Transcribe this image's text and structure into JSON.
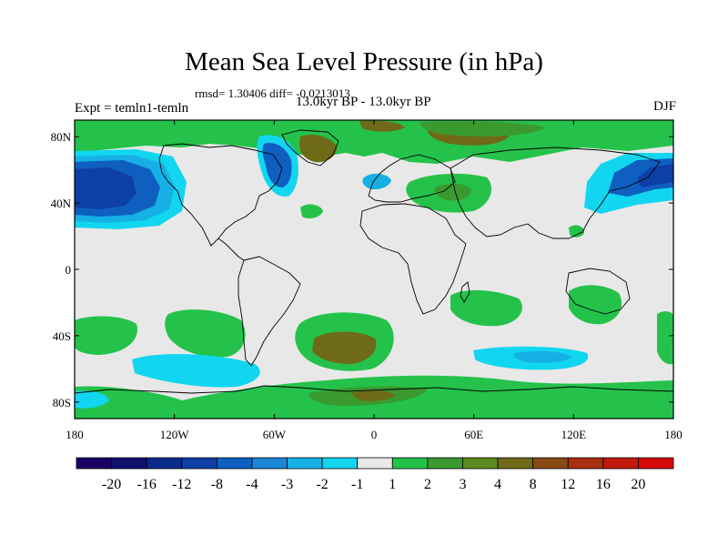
{
  "title": "Mean Sea Level Pressure (in hPa)",
  "stats": "rmsd= 1.30406 diff= -0.0213013",
  "experiment": "Expt = temln1-temln",
  "period": "13.0kyr BP - 13.0kyr BP",
  "season": "DJF",
  "axes": {
    "x_ticks": [
      "180",
      "120W",
      "60W",
      "0",
      "60E",
      "120E",
      "180"
    ],
    "y_ticks": [
      "80N",
      "40N",
      "0",
      "40S",
      "80S"
    ]
  },
  "colorbar": {
    "colors": [
      "#1a0066",
      "#101270",
      "#0c2a8a",
      "#0e3fa6",
      "#0f5fc0",
      "#1a86d6",
      "#16b0e4",
      "#12d6f0",
      "#e8e8e8",
      "#24c24a",
      "#3a9a30",
      "#5a8a20",
      "#6f6a18",
      "#8a4a14",
      "#a83010",
      "#c01a0c",
      "#d40a0a"
    ],
    "labels": [
      "-20",
      "-16",
      "-12",
      "-8",
      "-4",
      "-3",
      "-2",
      "-1",
      "1",
      "2",
      "3",
      "4",
      "8",
      "12",
      "16",
      "20"
    ]
  },
  "field_colors": {
    "background": "#e8e8e8",
    "light_green": "#24c24a",
    "mid_green": "#3a9a30",
    "olive": "#6f6a18",
    "cyan": "#12d6f0",
    "light_blue": "#16b0e4",
    "mid_blue": "#0f5fc0",
    "dark_blue": "#0e3fa6"
  }
}
